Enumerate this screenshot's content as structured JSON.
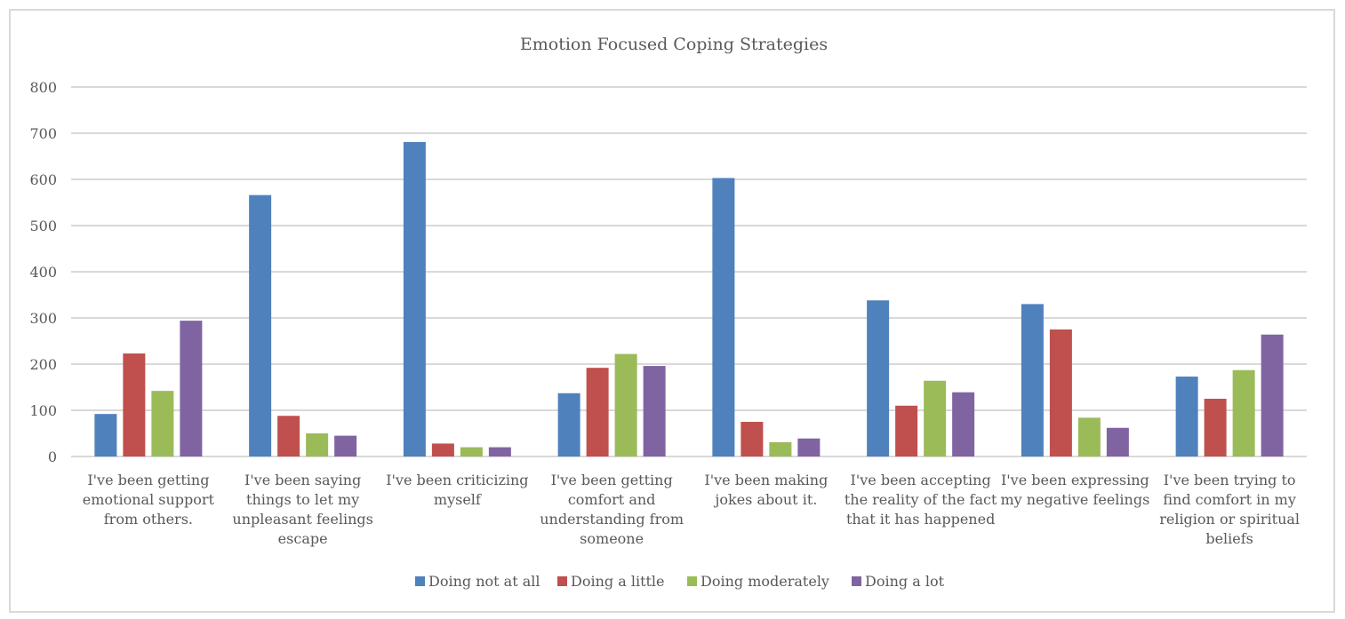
{
  "chart_data": {
    "type": "bar",
    "title": "Emotion Focused Coping Strategies",
    "xlabel": "",
    "ylabel": "",
    "ylim": [
      0,
      800
    ],
    "yticks": [
      0,
      100,
      200,
      300,
      400,
      500,
      600,
      700,
      800
    ],
    "grid": true,
    "legend_position": "bottom",
    "categories": [
      [
        "I've been getting",
        "emotional support",
        "from others."
      ],
      [
        "I've been saying",
        "things to let my",
        "unpleasant feelings",
        "escape"
      ],
      [
        "I've been criticizing",
        "myself"
      ],
      [
        "I've been getting",
        "comfort and",
        "understanding from",
        "someone"
      ],
      [
        "I've been making",
        "jokes about it."
      ],
      [
        "I've been accepting",
        "the reality of the fact",
        "that it has happened"
      ],
      [
        "I've been expressing",
        "my negative feelings"
      ],
      [
        "I've been trying to",
        "find comfort in my",
        "religion or spiritual",
        "beliefs"
      ]
    ],
    "series": [
      {
        "name": "Doing not at all",
        "color": "#4f81bd",
        "values": [
          92,
          566,
          681,
          137,
          603,
          338,
          330,
          173
        ]
      },
      {
        "name": "Doing a little",
        "color": "#c0504d",
        "values": [
          223,
          88,
          28,
          192,
          75,
          110,
          275,
          125
        ]
      },
      {
        "name": "Doing moderately",
        "color": "#9bbb59",
        "values": [
          142,
          50,
          20,
          222,
          31,
          164,
          84,
          187
        ]
      },
      {
        "name": "Doing a lot",
        "color": "#8064a2",
        "values": [
          294,
          45,
          20,
          196,
          39,
          139,
          62,
          264
        ]
      }
    ]
  }
}
